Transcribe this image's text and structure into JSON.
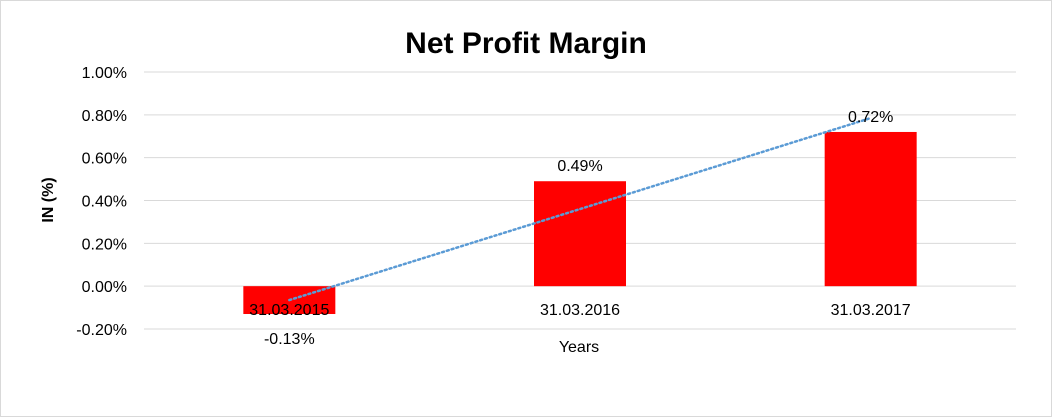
{
  "chart_data": {
    "type": "bar",
    "title": "Net Profit Margin",
    "xlabel": "Years",
    "ylabel": "IN (%)",
    "categories": [
      "31.03.2015",
      "31.03.2016",
      "31.03.2017"
    ],
    "values": [
      -0.13,
      0.49,
      0.72
    ],
    "data_labels": [
      "-0.13%",
      "0.49%",
      "0.72%"
    ],
    "ylim": [
      -0.2,
      1.0
    ],
    "y_ticks": [
      -0.2,
      0.0,
      0.2,
      0.4,
      0.6,
      0.8,
      1.0
    ],
    "y_tick_labels": [
      "-0.20%",
      "0.00%",
      "0.20%",
      "0.40%",
      "0.60%",
      "0.80%",
      "1.00%"
    ],
    "grid": true,
    "trendline": "linear, dotted",
    "colors": {
      "bar": "#ff0000",
      "trendline": "#5b9bd5",
      "grid": "#d9d9d9"
    }
  }
}
